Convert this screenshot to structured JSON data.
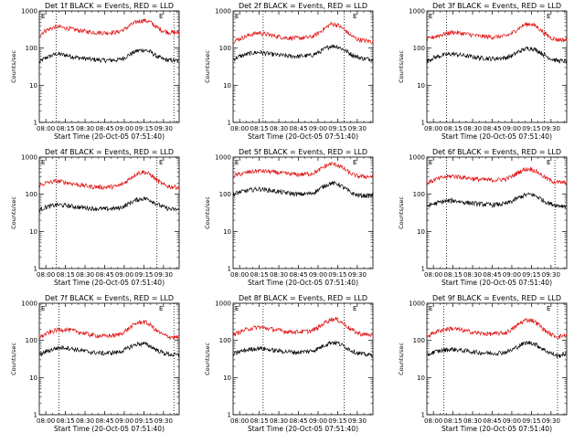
{
  "colors": {
    "events": "#000000",
    "lld": "#e01010",
    "axes": "#000000",
    "background": "#ffffff"
  },
  "shared": {
    "xlabel": "Start Time (20-Oct-05 07:51:40)",
    "ylabel": "Counts/sec",
    "x_ticks": [
      "08:00",
      "08:15",
      "08:30",
      "08:45",
      "09:00",
      "09:15",
      "09:30"
    ],
    "y_ticks": [
      "1",
      "10",
      "100",
      "1000"
    ],
    "marker_labels": [
      "E",
      "E"
    ],
    "scale": "log-y"
  },
  "chart_data": [
    {
      "type": "line",
      "title": "Det 1f BLACK = Events, RED = LLD",
      "x_range_minutes": [
        -5,
        102
      ],
      "ylim": [
        1,
        1000
      ],
      "vlines": [
        8,
        98
      ],
      "series": [
        {
          "name": "Events",
          "color": "#000000",
          "x": [
            -5,
            0,
            8,
            15,
            25,
            35,
            45,
            55,
            60,
            65,
            70,
            75,
            80,
            85,
            90,
            95,
            102
          ],
          "y": [
            42,
            55,
            70,
            65,
            55,
            50,
            47,
            48,
            55,
            70,
            85,
            90,
            80,
            60,
            50,
            47,
            45
          ]
        },
        {
          "name": "LLD",
          "color": "#e01010",
          "x": [
            -5,
            0,
            8,
            15,
            25,
            35,
            45,
            55,
            60,
            65,
            70,
            75,
            80,
            85,
            90,
            95,
            102
          ],
          "y": [
            230,
            300,
            380,
            350,
            300,
            270,
            260,
            270,
            320,
            420,
            520,
            560,
            500,
            360,
            290,
            265,
            260
          ]
        }
      ]
    },
    {
      "type": "line",
      "title": "Det 2f BLACK = Events, RED = LLD",
      "x_range_minutes": [
        -5,
        102
      ],
      "ylim": [
        1,
        1000
      ],
      "vlines": [
        18,
        80
      ],
      "series": [
        {
          "name": "Events",
          "color": "#000000",
          "x": [
            -5,
            0,
            8,
            15,
            25,
            35,
            45,
            55,
            60,
            65,
            70,
            75,
            80,
            85,
            90,
            95,
            102
          ],
          "y": [
            50,
            60,
            72,
            78,
            68,
            62,
            60,
            64,
            75,
            95,
            115,
            110,
            90,
            70,
            58,
            52,
            50
          ]
        },
        {
          "name": "LLD",
          "color": "#e01010",
          "x": [
            -5,
            0,
            8,
            15,
            25,
            35,
            45,
            55,
            60,
            65,
            70,
            75,
            80,
            85,
            90,
            95,
            102
          ],
          "y": [
            150,
            180,
            230,
            260,
            220,
            190,
            185,
            200,
            250,
            340,
            450,
            420,
            320,
            220,
            175,
            160,
            150
          ]
        }
      ]
    },
    {
      "type": "line",
      "title": "Det 3f BLACK = Events, RED = LLD",
      "x_range_minutes": [
        -5,
        102
      ],
      "ylim": [
        1,
        1000
      ],
      "vlines": [
        10,
        85
      ],
      "series": [
        {
          "name": "Events",
          "color": "#000000",
          "x": [
            -5,
            0,
            8,
            15,
            25,
            35,
            45,
            55,
            60,
            65,
            70,
            75,
            80,
            85,
            90,
            95,
            102
          ],
          "y": [
            45,
            55,
            65,
            70,
            62,
            55,
            52,
            55,
            62,
            80,
            95,
            100,
            85,
            65,
            52,
            46,
            44
          ]
        },
        {
          "name": "LLD",
          "color": "#e01010",
          "x": [
            -5,
            0,
            8,
            15,
            25,
            35,
            45,
            55,
            60,
            65,
            70,
            75,
            80,
            85,
            90,
            95,
            102
          ],
          "y": [
            170,
            200,
            240,
            270,
            240,
            210,
            200,
            210,
            250,
            340,
            430,
            450,
            360,
            250,
            190,
            170,
            165
          ]
        }
      ]
    },
    {
      "type": "line",
      "title": "Det 4f BLACK = Events, RED = LLD",
      "x_range_minutes": [
        -5,
        102
      ],
      "ylim": [
        1,
        1000
      ],
      "vlines": [
        8,
        85
      ],
      "series": [
        {
          "name": "Events",
          "color": "#000000",
          "x": [
            -5,
            0,
            8,
            15,
            25,
            35,
            45,
            55,
            60,
            65,
            70,
            75,
            80,
            85,
            90,
            95,
            102
          ],
          "y": [
            38,
            45,
            52,
            50,
            45,
            42,
            40,
            42,
            48,
            60,
            72,
            78,
            70,
            55,
            45,
            40,
            38
          ]
        },
        {
          "name": "LLD",
          "color": "#e01010",
          "x": [
            -5,
            0,
            8,
            15,
            25,
            35,
            45,
            55,
            60,
            65,
            70,
            75,
            80,
            85,
            90,
            95,
            102
          ],
          "y": [
            170,
            200,
            230,
            210,
            180,
            160,
            155,
            165,
            200,
            280,
            370,
            400,
            340,
            240,
            180,
            160,
            155
          ]
        }
      ]
    },
    {
      "type": "line",
      "title": "Det 5f BLACK = Events, RED = LLD",
      "x_range_minutes": [
        -5,
        102
      ],
      "ylim": [
        1,
        1000
      ],
      "vlines": [],
      "series": [
        {
          "name": "Events",
          "color": "#000000",
          "x": [
            -5,
            0,
            8,
            15,
            25,
            35,
            45,
            55,
            60,
            65,
            70,
            75,
            80,
            85,
            90,
            95,
            102
          ],
          "y": [
            100,
            115,
            130,
            140,
            125,
            110,
            100,
            105,
            130,
            170,
            200,
            190,
            150,
            110,
            95,
            92,
            92
          ]
        },
        {
          "name": "LLD",
          "color": "#e01010",
          "x": [
            -5,
            0,
            8,
            15,
            25,
            35,
            45,
            55,
            60,
            65,
            70,
            75,
            80,
            85,
            90,
            95,
            102
          ],
          "y": [
            310,
            350,
            400,
            430,
            400,
            360,
            340,
            360,
            430,
            560,
            660,
            620,
            480,
            360,
            310,
            300,
            300
          ]
        }
      ]
    },
    {
      "type": "line",
      "title": "Det 6f BLACK = Events, RED = LLD",
      "x_range_minutes": [
        -5,
        102
      ],
      "ylim": [
        1,
        1000
      ],
      "vlines": [
        10,
        93
      ],
      "series": [
        {
          "name": "Events",
          "color": "#000000",
          "x": [
            -5,
            0,
            8,
            15,
            25,
            35,
            45,
            55,
            60,
            65,
            70,
            75,
            80,
            85,
            90,
            95,
            102
          ],
          "y": [
            48,
            55,
            65,
            68,
            60,
            55,
            52,
            55,
            65,
            80,
            95,
            100,
            85,
            65,
            55,
            50,
            48
          ]
        },
        {
          "name": "LLD",
          "color": "#e01010",
          "x": [
            -5,
            0,
            8,
            15,
            25,
            35,
            45,
            55,
            60,
            65,
            70,
            75,
            80,
            85,
            90,
            95,
            102
          ],
          "y": [
            200,
            240,
            290,
            310,
            280,
            250,
            240,
            255,
            300,
            390,
            470,
            480,
            390,
            290,
            230,
            210,
            205
          ]
        }
      ]
    },
    {
      "type": "line",
      "title": "Det 7f BLACK = Events, RED = LLD",
      "x_range_minutes": [
        -5,
        102
      ],
      "ylim": [
        1,
        1000
      ],
      "vlines": [
        10,
        98
      ],
      "series": [
        {
          "name": "Events",
          "color": "#000000",
          "x": [
            -5,
            0,
            8,
            15,
            25,
            35,
            45,
            55,
            60,
            65,
            70,
            75,
            80,
            85,
            90,
            95,
            102
          ],
          "y": [
            40,
            50,
            62,
            65,
            55,
            48,
            45,
            48,
            55,
            68,
            80,
            82,
            70,
            55,
            46,
            42,
            40
          ]
        },
        {
          "name": "LLD",
          "color": "#e01010",
          "x": [
            -5,
            0,
            8,
            15,
            25,
            35,
            45,
            55,
            60,
            65,
            70,
            75,
            80,
            85,
            90,
            95,
            102
          ],
          "y": [
            120,
            150,
            190,
            200,
            170,
            140,
            130,
            140,
            170,
            230,
            300,
            320,
            260,
            180,
            140,
            125,
            120
          ]
        }
      ]
    },
    {
      "type": "line",
      "title": "Det 8f BLACK = Events, RED = LLD",
      "x_range_minutes": [
        -5,
        102
      ],
      "ylim": [
        1,
        1000
      ],
      "vlines": [
        18,
        80
      ],
      "series": [
        {
          "name": "Events",
          "color": "#000000",
          "x": [
            -5,
            0,
            8,
            15,
            25,
            35,
            45,
            55,
            60,
            65,
            70,
            75,
            80,
            85,
            90,
            95,
            102
          ],
          "y": [
            42,
            50,
            58,
            62,
            55,
            50,
            48,
            52,
            60,
            75,
            90,
            85,
            70,
            55,
            46,
            42,
            40
          ]
        },
        {
          "name": "LLD",
          "color": "#e01010",
          "x": [
            -5,
            0,
            8,
            15,
            25,
            35,
            45,
            55,
            60,
            65,
            70,
            75,
            80,
            85,
            90,
            95,
            102
          ],
          "y": [
            140,
            170,
            210,
            230,
            200,
            175,
            170,
            180,
            220,
            300,
            380,
            360,
            280,
            200,
            160,
            145,
            140
          ]
        }
      ]
    },
    {
      "type": "line",
      "title": "Det 9f BLACK = Events, RED = LLD",
      "x_range_minutes": [
        -5,
        102
      ],
      "ylim": [
        1,
        1000
      ],
      "vlines": [
        8,
        95
      ],
      "series": [
        {
          "name": "Events",
          "color": "#000000",
          "x": [
            -5,
            0,
            8,
            15,
            25,
            35,
            45,
            55,
            60,
            65,
            70,
            75,
            80,
            85,
            90,
            95,
            102
          ],
          "y": [
            40,
            48,
            55,
            58,
            52,
            47,
            45,
            48,
            55,
            70,
            85,
            88,
            72,
            55,
            45,
            38,
            45
          ]
        },
        {
          "name": "LLD",
          "color": "#e01010",
          "x": [
            -5,
            0,
            8,
            15,
            25,
            35,
            45,
            55,
            60,
            65,
            70,
            75,
            80,
            85,
            90,
            95,
            102
          ],
          "y": [
            130,
            160,
            200,
            210,
            180,
            155,
            150,
            160,
            195,
            270,
            350,
            360,
            280,
            190,
            145,
            125,
            140
          ]
        }
      ]
    }
  ]
}
